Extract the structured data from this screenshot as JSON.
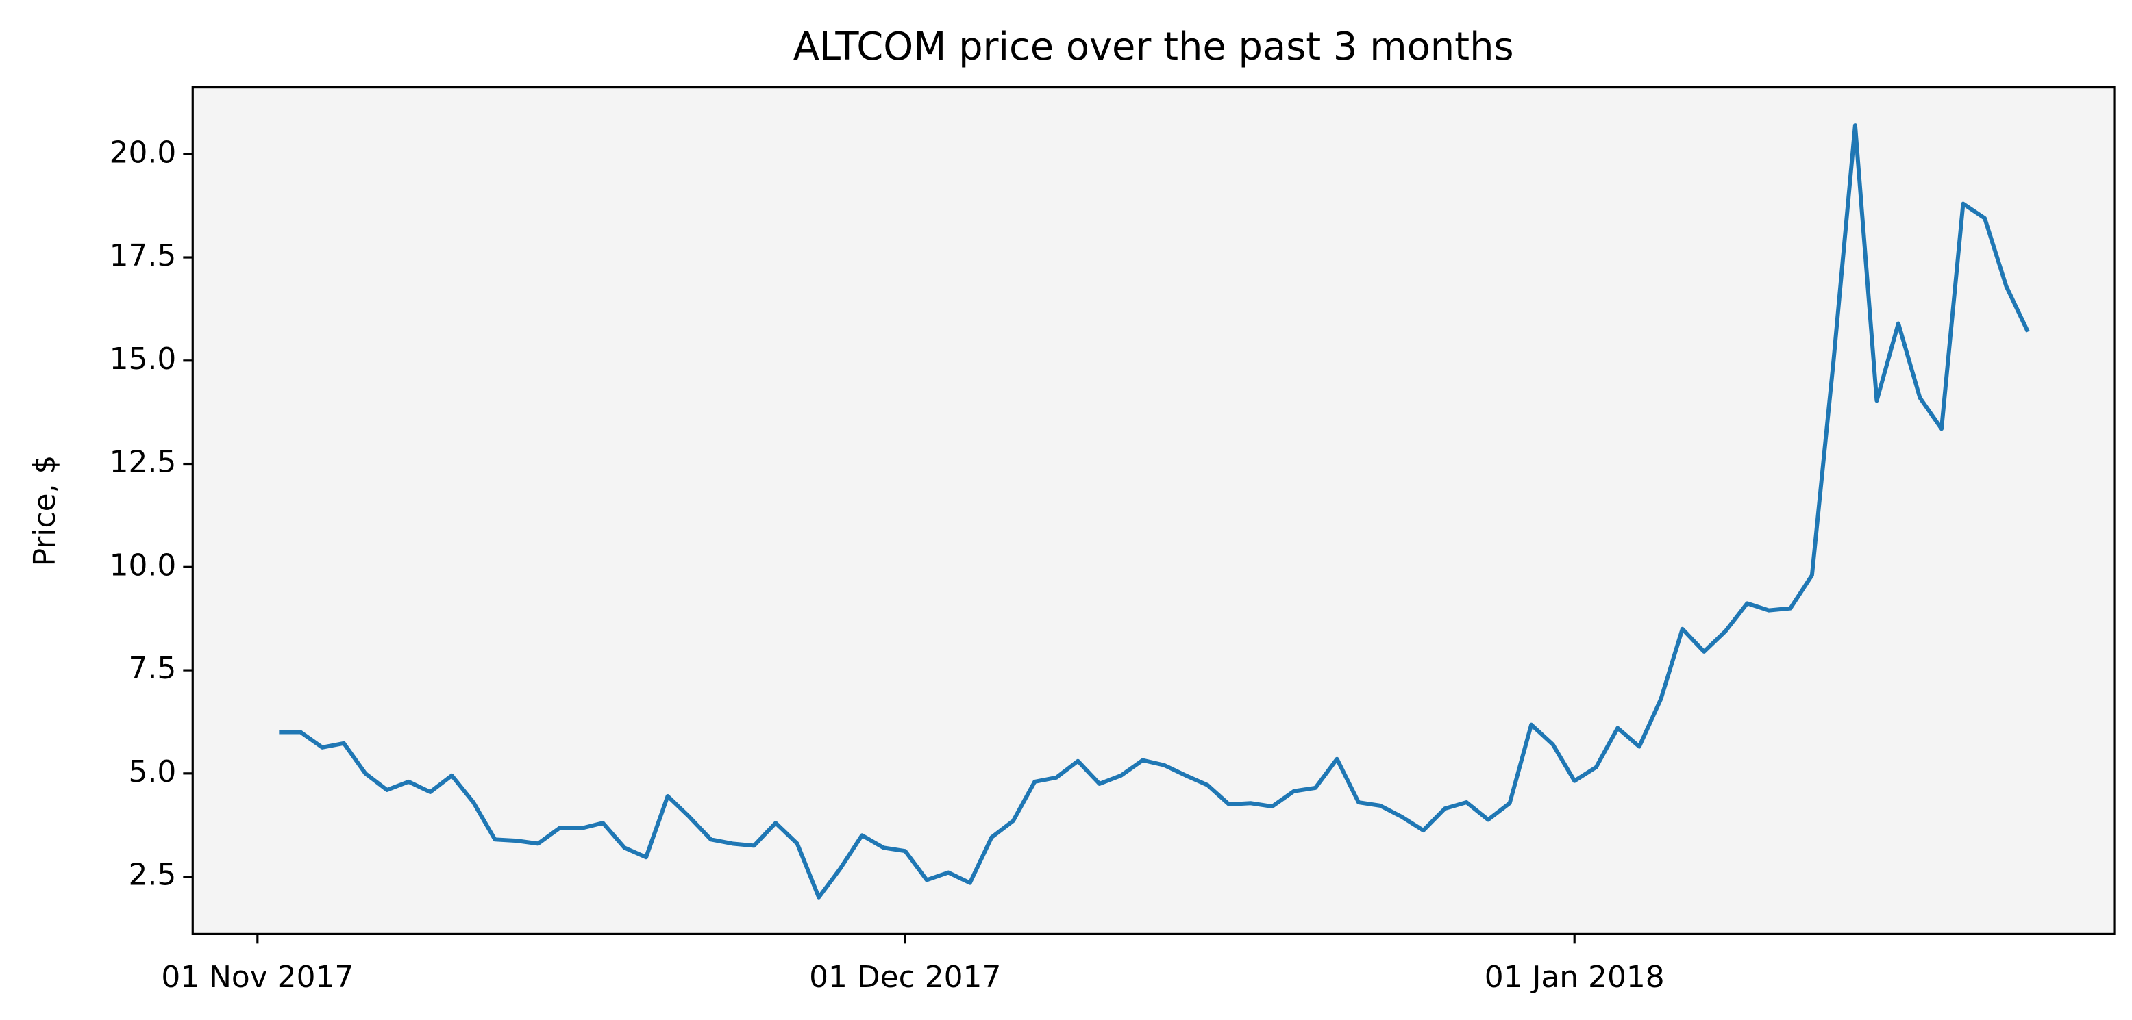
{
  "chart_data": {
    "type": "line",
    "title": "ALTCOM price over the past 3 months",
    "ylabel": "Price, $",
    "x": [
      "2017-11-02",
      "2017-11-03",
      "2017-11-04",
      "2017-11-05",
      "2017-11-06",
      "2017-11-07",
      "2017-11-08",
      "2017-11-09",
      "2017-11-10",
      "2017-11-11",
      "2017-11-12",
      "2017-11-13",
      "2017-11-14",
      "2017-11-15",
      "2017-11-16",
      "2017-11-17",
      "2017-11-18",
      "2017-11-19",
      "2017-11-20",
      "2017-11-21",
      "2017-11-22",
      "2017-11-23",
      "2017-11-24",
      "2017-11-25",
      "2017-11-26",
      "2017-11-27",
      "2017-11-28",
      "2017-11-29",
      "2017-11-30",
      "2017-12-01",
      "2017-12-02",
      "2017-12-03",
      "2017-12-04",
      "2017-12-05",
      "2017-12-06",
      "2017-12-07",
      "2017-12-08",
      "2017-12-09",
      "2017-12-10",
      "2017-12-11",
      "2017-12-12",
      "2017-12-13",
      "2017-12-14",
      "2017-12-15",
      "2017-12-16",
      "2017-12-17",
      "2017-12-18",
      "2017-12-19",
      "2017-12-20",
      "2017-12-21",
      "2017-12-22",
      "2017-12-23",
      "2017-12-24",
      "2017-12-25",
      "2017-12-26",
      "2017-12-27",
      "2017-12-28",
      "2017-12-29",
      "2017-12-30",
      "2017-12-31",
      "2018-01-01",
      "2018-01-02",
      "2018-01-03",
      "2018-01-04",
      "2018-01-05",
      "2018-01-06",
      "2018-01-07",
      "2018-01-08",
      "2018-01-09",
      "2018-01-10",
      "2018-01-11",
      "2018-01-12",
      "2018-01-13",
      "2018-01-14",
      "2018-01-15",
      "2018-01-16",
      "2018-01-17",
      "2018-01-18",
      "2018-01-19",
      "2018-01-20",
      "2018-01-21",
      "2018-01-22"
    ],
    "series": [
      {
        "name": "ALTCOM",
        "color": "#1f77b4",
        "values": [
          6.0,
          6.0,
          5.63,
          5.73,
          5.0,
          4.6,
          4.8,
          4.55,
          4.95,
          4.3,
          3.4,
          3.37,
          3.3,
          3.68,
          3.67,
          3.8,
          3.2,
          2.97,
          4.45,
          3.95,
          3.4,
          3.3,
          3.25,
          3.8,
          3.3,
          2.0,
          2.7,
          3.5,
          3.2,
          3.12,
          2.42,
          2.6,
          2.35,
          3.45,
          3.85,
          4.8,
          4.9,
          5.3,
          4.75,
          4.95,
          5.32,
          5.2,
          4.95,
          4.72,
          4.25,
          4.28,
          4.2,
          4.57,
          4.65,
          5.35,
          4.3,
          4.22,
          3.95,
          3.62,
          4.15,
          4.3,
          3.88,
          4.28,
          6.18,
          5.7,
          4.82,
          5.15,
          6.1,
          5.65,
          6.8,
          8.5,
          7.95,
          8.45,
          9.12,
          8.95,
          9.0,
          9.8,
          15.0,
          20.7,
          14.03,
          15.9,
          14.1,
          13.35,
          18.8,
          18.45,
          16.8,
          15.7
        ]
      }
    ],
    "xlim": [
      "2017-10-29",
      "2018-01-26"
    ],
    "xticks": [
      {
        "value": "2017-11-01",
        "label": "01 Nov 2017"
      },
      {
        "value": "2017-12-01",
        "label": "01 Dec 2017"
      },
      {
        "value": "2018-01-01",
        "label": "01 Jan 2018"
      }
    ],
    "ylim": [
      1.11,
      21.62
    ],
    "yticks": [
      2.5,
      {
        "value": 5,
        "label": "5.0"
      },
      7.5,
      {
        "value": 10,
        "label": "10.0"
      },
      12.5,
      {
        "value": 15,
        "label": "15.0"
      },
      17.5,
      {
        "value": 20,
        "label": "20.0"
      }
    ],
    "background": "#f4f4f4"
  }
}
